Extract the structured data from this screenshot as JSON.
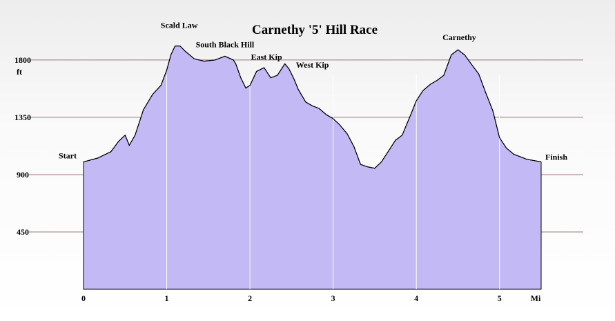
{
  "chart_data": {
    "type": "area",
    "title": "Carnethy '5' Hill Race",
    "ylabel": "ft",
    "xlabel": "Mi",
    "xlim": [
      0,
      5.5
    ],
    "ylim": [
      0,
      2000
    ],
    "y_ticks": [
      450,
      900,
      1350,
      1800
    ],
    "x_ticks": [
      0,
      1,
      2,
      3,
      4,
      5
    ],
    "grid": {
      "horizontal": true,
      "vertical": true
    },
    "colors": {
      "fill": "#c2b9f5",
      "outline": "#000000",
      "hgrid": "#a07878",
      "vgrid": "#ffffff"
    },
    "annotations": [
      {
        "label": "Start",
        "x": 0.0
      },
      {
        "label": "Scald Law",
        "x": 1.15
      },
      {
        "label": "South Black Hill",
        "x": 1.7
      },
      {
        "label": "East Kip",
        "x": 2.1
      },
      {
        "label": "West Kip",
        "x": 2.47
      },
      {
        "label": "Carnethy",
        "x": 4.5
      },
      {
        "label": "Finish",
        "x": 5.5
      }
    ],
    "series": [
      {
        "x": [
          0,
          0.17,
          0.33,
          0.42,
          0.5,
          0.55,
          0.62,
          0.72,
          0.83,
          0.93,
          1.0,
          1.05,
          1.1,
          1.16,
          1.22,
          1.33,
          1.45,
          1.58,
          1.7,
          1.8,
          1.83,
          1.89,
          1.95,
          2.0,
          2.08,
          2.17,
          2.25,
          2.33,
          2.42,
          2.47,
          2.53,
          2.58,
          2.67,
          2.75,
          2.83,
          2.92,
          3.0,
          3.08,
          3.17,
          3.25,
          3.33,
          3.42,
          3.5,
          3.58,
          3.67,
          3.75,
          3.83,
          3.92,
          4.0,
          4.08,
          4.17,
          4.25,
          4.33,
          4.42,
          4.5,
          4.58,
          4.67,
          4.75,
          4.83,
          4.92,
          5.0,
          5.08,
          5.17,
          5.25,
          5.33,
          5.42,
          5.5
        ],
        "y": [
          1000,
          1030,
          1080,
          1160,
          1210,
          1130,
          1210,
          1410,
          1530,
          1600,
          1720,
          1840,
          1910,
          1910,
          1870,
          1810,
          1790,
          1800,
          1830,
          1800,
          1770,
          1660,
          1580,
          1600,
          1710,
          1740,
          1660,
          1680,
          1770,
          1730,
          1650,
          1570,
          1470,
          1440,
          1420,
          1370,
          1340,
          1290,
          1220,
          1120,
          980,
          960,
          950,
          1000,
          1090,
          1170,
          1210,
          1350,
          1480,
          1560,
          1610,
          1640,
          1680,
          1840,
          1880,
          1840,
          1760,
          1690,
          1550,
          1400,
          1190,
          1110,
          1060,
          1040,
          1020,
          1010,
          1000
        ]
      }
    ]
  }
}
